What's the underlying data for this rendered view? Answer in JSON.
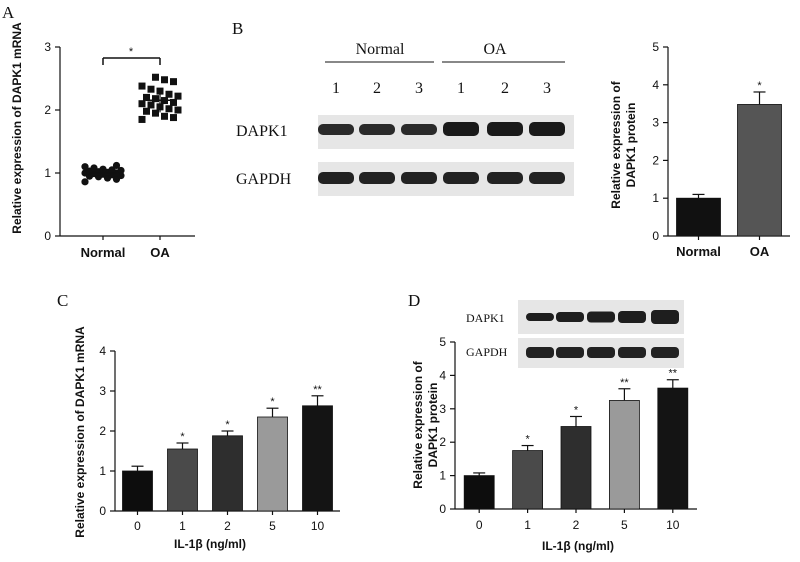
{
  "panels": {
    "A": {
      "letter": "A",
      "chart_data": {
        "type": "scatter",
        "categories": [
          "Normal",
          "OA"
        ],
        "ylabel": "Relative expression of DAPK1 mRNA",
        "ylim": [
          0,
          3
        ],
        "yticks": [
          0,
          1,
          2,
          3
        ],
        "significance": "*",
        "series": [
          {
            "category": "Normal",
            "values": [
              0.86,
              0.9,
              0.92,
              0.94,
              0.95,
              0.96,
              0.97,
              0.98,
              0.99,
              1.0,
              1.0,
              1.01,
              1.02,
              1.03,
              1.04,
              1.05,
              1.06,
              1.08,
              1.1,
              1.12
            ]
          },
          {
            "category": "OA",
            "values": [
              1.85,
              1.88,
              1.9,
              1.95,
              1.98,
              2.0,
              2.02,
              2.05,
              2.08,
              2.1,
              2.12,
              2.15,
              2.18,
              2.2,
              2.22,
              2.25,
              2.3,
              2.33,
              2.38,
              2.45,
              2.48,
              2.52
            ]
          }
        ]
      }
    },
    "B": {
      "letter": "B",
      "blot": {
        "group_labels": [
          "Normal",
          "OA"
        ],
        "lanes": [
          "1",
          "2",
          "3",
          "1",
          "2",
          "3"
        ],
        "rows": [
          "DAPK1",
          "GAPDH"
        ]
      },
      "chart_data": {
        "type": "bar",
        "categories": [
          "Normal",
          "OA"
        ],
        "values": [
          1.0,
          3.48
        ],
        "errors": [
          0.1,
          0.33
        ],
        "significance": [
          "",
          "*"
        ],
        "colors": [
          "#111111",
          "#555555"
        ],
        "ylabel": [
          "Relative expression of",
          "DAPK1 protein"
        ],
        "ylim": [
          0,
          5
        ],
        "yticks": [
          0,
          1,
          2,
          3,
          4,
          5
        ]
      }
    },
    "C": {
      "letter": "C",
      "chart_data": {
        "type": "bar",
        "categories": [
          "0",
          "1",
          "2",
          "5",
          "10"
        ],
        "values": [
          1.0,
          1.55,
          1.88,
          2.35,
          2.63
        ],
        "errors": [
          0.12,
          0.15,
          0.12,
          0.22,
          0.25
        ],
        "significance": [
          "",
          "*",
          "*",
          "*",
          "**"
        ],
        "colors": [
          "#0d0d0d",
          "#4a4a4a",
          "#2e2e2e",
          "#9a9a9a",
          "#141414"
        ],
        "xlabel": "IL-1β (ng/ml)",
        "ylabel": "Relative expression of DAPK1 mRNA",
        "ylim": [
          0,
          4
        ],
        "yticks": [
          0,
          1,
          2,
          3,
          4
        ]
      }
    },
    "D": {
      "letter": "D",
      "blot": {
        "rows": [
          "DAPK1",
          "GAPDH"
        ],
        "lane_count": 5
      },
      "chart_data": {
        "type": "bar",
        "categories": [
          "0",
          "1",
          "2",
          "5",
          "10"
        ],
        "values": [
          1.0,
          1.75,
          2.47,
          3.25,
          3.62
        ],
        "errors": [
          0.08,
          0.15,
          0.3,
          0.35,
          0.25
        ],
        "significance": [
          "",
          "*",
          "*",
          "**",
          "**"
        ],
        "colors": [
          "#0d0d0d",
          "#4a4a4a",
          "#2e2e2e",
          "#9a9a9a",
          "#141414"
        ],
        "xlabel": "IL-1β (ng/ml)",
        "ylabel": [
          "Relative expression of",
          "DAPK1 protein"
        ],
        "ylim": [
          0,
          5
        ],
        "yticks": [
          0,
          1,
          2,
          3,
          4,
          5
        ]
      }
    }
  }
}
